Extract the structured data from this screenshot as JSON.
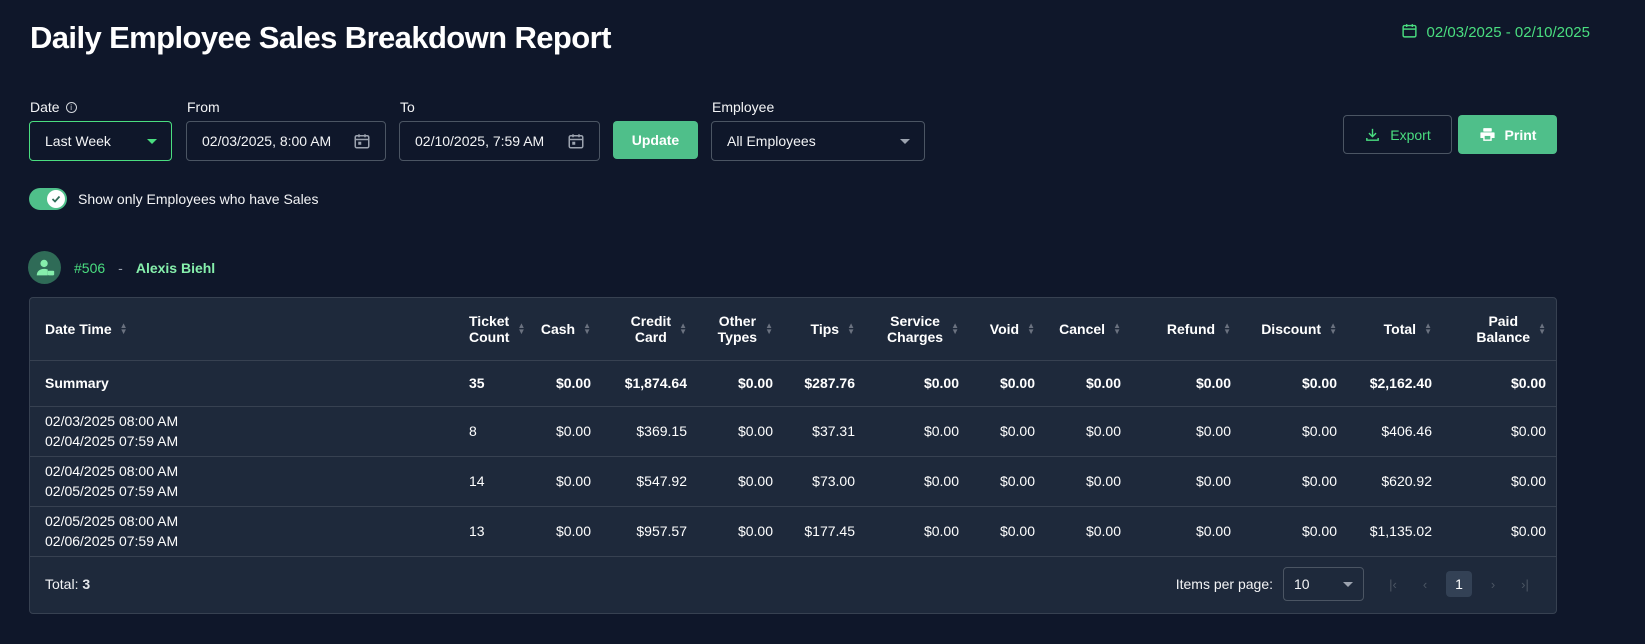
{
  "header": {
    "title": "Daily Employee Sales Breakdown Report",
    "date_range": "02/03/2025 - 02/10/2025"
  },
  "filters": {
    "date_label": "Date",
    "date_value": "Last Week",
    "from_label": "From",
    "from_value": "02/03/2025, 8:00 AM",
    "to_label": "To",
    "to_value": "02/10/2025, 7:59 AM",
    "update_label": "Update",
    "employee_label": "Employee",
    "employee_value": "All Employees"
  },
  "actions": {
    "export_label": "Export",
    "print_label": "Print"
  },
  "toggle": {
    "label": "Show only Employees who have Sales",
    "checked": true
  },
  "employee": {
    "number": "#506",
    "separator": "-",
    "name": "Alexis Biehl"
  },
  "table": {
    "columns": [
      {
        "l1": "Date Time",
        "l2": ""
      },
      {
        "l1": "Ticket",
        "l2": "Count"
      },
      {
        "l1": "Cash",
        "l2": ""
      },
      {
        "l1": "Credit",
        "l2": "Card"
      },
      {
        "l1": "Other",
        "l2": "Types"
      },
      {
        "l1": "Tips",
        "l2": ""
      },
      {
        "l1": "Service",
        "l2": "Charges"
      },
      {
        "l1": "Void",
        "l2": ""
      },
      {
        "l1": "Cancel",
        "l2": ""
      },
      {
        "l1": "Refund",
        "l2": ""
      },
      {
        "l1": "Discount",
        "l2": ""
      },
      {
        "l1": "Total",
        "l2": ""
      },
      {
        "l1": "Paid",
        "l2": "Balance"
      }
    ],
    "summary": {
      "label": "Summary",
      "cells": [
        "35",
        "$0.00",
        "$1,874.64",
        "$0.00",
        "$287.76",
        "$0.00",
        "$0.00",
        "$0.00",
        "$0.00",
        "$0.00",
        "$2,162.40",
        "$0.00"
      ]
    },
    "rows": [
      {
        "start": "02/03/2025 08:00 AM",
        "end": "02/04/2025 07:59 AM",
        "cells": [
          "8",
          "$0.00",
          "$369.15",
          "$0.00",
          "$37.31",
          "$0.00",
          "$0.00",
          "$0.00",
          "$0.00",
          "$0.00",
          "$406.46",
          "$0.00"
        ]
      },
      {
        "start": "02/04/2025 08:00 AM",
        "end": "02/05/2025 07:59 AM",
        "cells": [
          "14",
          "$0.00",
          "$547.92",
          "$0.00",
          "$73.00",
          "$0.00",
          "$0.00",
          "$0.00",
          "$0.00",
          "$0.00",
          "$620.92",
          "$0.00"
        ]
      },
      {
        "start": "02/05/2025 08:00 AM",
        "end": "02/06/2025 07:59 AM",
        "cells": [
          "13",
          "$0.00",
          "$957.57",
          "$0.00",
          "$177.45",
          "$0.00",
          "$0.00",
          "$0.00",
          "$0.00",
          "$0.00",
          "$1,135.02",
          "$0.00"
        ]
      }
    ]
  },
  "footer": {
    "total_label": "Total:",
    "total_value": "3",
    "items_per_page_label": "Items per page:",
    "items_per_page_value": "10",
    "current_page": "1"
  },
  "icons": {
    "calendar": "calendar-icon",
    "info": "info-icon",
    "download": "download-icon",
    "printer": "printer-icon",
    "check": "check-icon",
    "user": "user-badge-icon",
    "sort": "sort-icon"
  },
  "colors": {
    "background": "#0f172a",
    "panel": "#1e293b",
    "accent": "#4fbf8a",
    "accent_text": "#4ade80",
    "border": "#374151"
  }
}
